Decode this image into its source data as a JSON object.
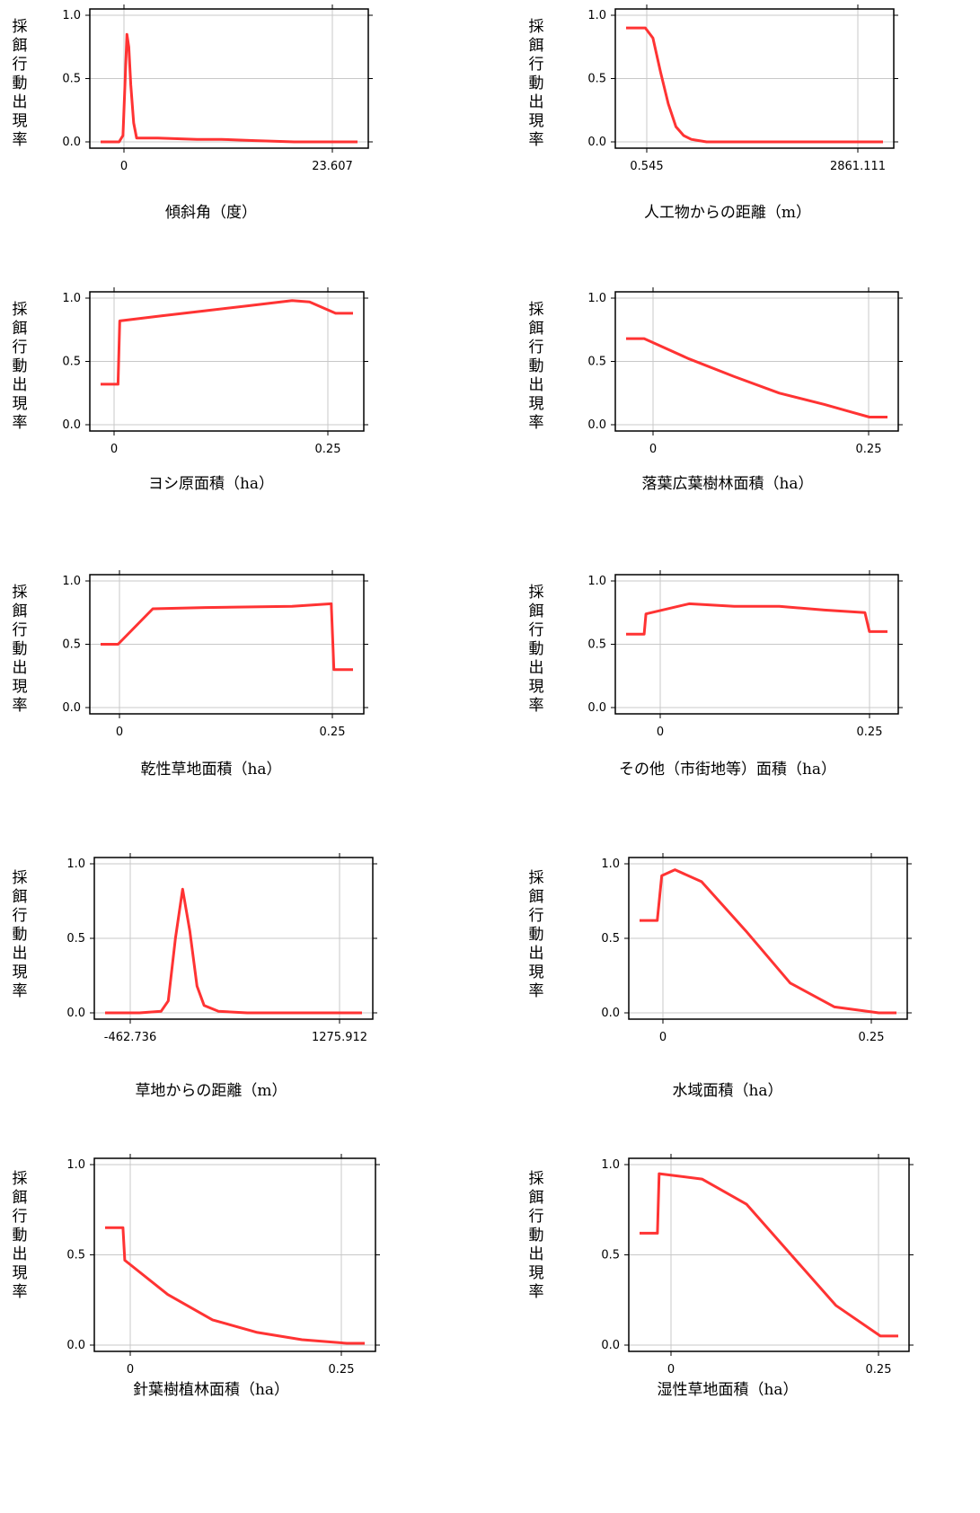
{
  "chart_data": [
    {
      "type": "line",
      "ylabel": "採餌行動出現率",
      "xlabel": "傾斜角（度）",
      "x_ticks": [
        "0",
        "23.607"
      ],
      "y_ticks": [
        "0.0",
        "0.5",
        "1.0"
      ],
      "ylim": [
        0,
        1
      ],
      "grid": true,
      "series": [
        {
          "color": "#ff3333",
          "x": [
            -1.9,
            0.0,
            0.4,
            0.8,
            1.0,
            1.2,
            1.5,
            1.8,
            2.2,
            4.0,
            8.0,
            10.5,
            14,
            18,
            23.0,
            24.5
          ],
          "y": [
            0.0,
            0.0,
            0.05,
            0.85,
            0.75,
            0.45,
            0.15,
            0.03,
            0.03,
            0.03,
            0.02,
            0.02,
            0.01,
            0.0,
            0.0,
            0.0
          ]
        }
      ]
    },
    {
      "type": "line",
      "ylabel": "採餌行動出現率",
      "xlabel": "人工物からの距離（m）",
      "x_ticks": [
        "0.545",
        "2861.111"
      ],
      "y_ticks": [
        "0.0",
        "0.5",
        "1.0"
      ],
      "ylim": [
        0,
        1
      ],
      "grid": true,
      "series": [
        {
          "color": "#ff3333",
          "x": [
            -250,
            0.545,
            100,
            200,
            300,
            400,
            500,
            600,
            700,
            800,
            1000,
            2000,
            2861.111,
            3100
          ],
          "y": [
            0.9,
            0.9,
            0.82,
            0.55,
            0.3,
            0.12,
            0.05,
            0.02,
            0.01,
            0.0,
            0.0,
            0.0,
            0.0,
            0.0
          ]
        }
      ]
    },
    {
      "type": "line",
      "ylabel": "採餌行動出現率",
      "xlabel": "ヨシ原面積（ha）",
      "x_ticks": [
        "0",
        "0.25"
      ],
      "y_ticks": [
        "0.0",
        "0.5",
        "1.0"
      ],
      "ylim": [
        0,
        1
      ],
      "grid": true,
      "series": [
        {
          "color": "#ff3333",
          "x": [
            -0.02,
            0,
            0.002,
            0.05,
            0.1,
            0.15,
            0.2,
            0.22,
            0.25,
            0.27
          ],
          "y": [
            0.32,
            0.32,
            0.82,
            0.86,
            0.9,
            0.94,
            0.98,
            0.97,
            0.88,
            0.88
          ]
        }
      ]
    },
    {
      "type": "line",
      "ylabel": "採餌行動出現率",
      "xlabel": "落葉広葉樹林面積（ha）",
      "x_ticks": [
        "0",
        "0.25"
      ],
      "y_ticks": [
        "0.0",
        "0.5",
        "1.0"
      ],
      "ylim": [
        0,
        1
      ],
      "grid": true,
      "series": [
        {
          "color": "#ff3333",
          "x": [
            -0.02,
            0,
            0.05,
            0.1,
            0.15,
            0.2,
            0.23,
            0.25,
            0.27
          ],
          "y": [
            0.68,
            0.68,
            0.52,
            0.38,
            0.25,
            0.16,
            0.1,
            0.06,
            0.06
          ]
        }
      ]
    },
    {
      "type": "line",
      "ylabel": "採餌行動出現率",
      "xlabel": "乾性草地面積（ha）",
      "x_ticks": [
        "0",
        "0.25"
      ],
      "y_ticks": [
        "0.0",
        "0.5",
        "1.0"
      ],
      "ylim": [
        0,
        1
      ],
      "grid": true,
      "series": [
        {
          "color": "#ff3333",
          "x": [
            -0.02,
            0,
            0.04,
            0.1,
            0.2,
            0.245,
            0.248,
            0.25,
            0.27
          ],
          "y": [
            0.5,
            0.5,
            0.78,
            0.79,
            0.8,
            0.82,
            0.3,
            0.3,
            0.3
          ]
        }
      ]
    },
    {
      "type": "line",
      "ylabel": "採餌行動出現率",
      "xlabel": "その他（市街地等）面積（ha）",
      "x_ticks": [
        "0",
        "0.25"
      ],
      "y_ticks": [
        "0.0",
        "0.5",
        "1.0"
      ],
      "ylim": [
        0,
        1
      ],
      "grid": true,
      "series": [
        {
          "color": "#ff3333",
          "x": [
            -0.02,
            0,
            0.002,
            0.05,
            0.1,
            0.15,
            0.2,
            0.245,
            0.25,
            0.27
          ],
          "y": [
            0.58,
            0.58,
            0.74,
            0.82,
            0.8,
            0.8,
            0.77,
            0.75,
            0.6,
            0.6
          ]
        }
      ]
    },
    {
      "type": "line",
      "ylabel": "採餌行動出現率",
      "xlabel": "草地からの距離（m）",
      "x_ticks": [
        "-462.736",
        "1275.912"
      ],
      "y_ticks": [
        "0.0",
        "0.5",
        "1.0"
      ],
      "ylim": [
        0,
        1
      ],
      "grid": true,
      "series": [
        {
          "color": "#ff3333",
          "x": [
            -490,
            -250,
            -100,
            -50,
            0,
            50,
            100,
            150,
            200,
            300,
            500,
            800,
            1275.912,
            1300
          ],
          "y": [
            0.0,
            0.0,
            0.01,
            0.08,
            0.5,
            0.83,
            0.55,
            0.18,
            0.05,
            0.01,
            0.0,
            0.0,
            0.0,
            0.0
          ]
        }
      ]
    },
    {
      "type": "line",
      "ylabel": "採餌行動出現率",
      "xlabel": "水域面積（ha）",
      "x_ticks": [
        "0",
        "0.25"
      ],
      "y_ticks": [
        "0.0",
        "0.5",
        "1.0"
      ],
      "ylim": [
        0,
        1
      ],
      "grid": true,
      "series": [
        {
          "color": "#ff3333",
          "x": [
            -0.02,
            0,
            0.005,
            0.02,
            0.05,
            0.1,
            0.15,
            0.2,
            0.25,
            0.27
          ],
          "y": [
            0.62,
            0.62,
            0.92,
            0.96,
            0.88,
            0.55,
            0.2,
            0.04,
            0.0,
            0.0
          ]
        }
      ]
    },
    {
      "type": "line",
      "ylabel": "採餌行動出現率",
      "xlabel": "針葉樹植林面積（ha）",
      "x_ticks": [
        "0",
        "0.25"
      ],
      "y_ticks": [
        "0.0",
        "0.5",
        "1.0"
      ],
      "ylim": [
        0,
        1
      ],
      "grid": true,
      "series": [
        {
          "color": "#ff3333",
          "x": [
            -0.02,
            0,
            0.002,
            0.05,
            0.1,
            0.15,
            0.2,
            0.25,
            0.27
          ],
          "y": [
            0.65,
            0.65,
            0.47,
            0.28,
            0.14,
            0.07,
            0.03,
            0.01,
            0.01
          ]
        }
      ]
    },
    {
      "type": "line",
      "ylabel": "採餌行動出現率",
      "xlabel": "湿性草地面積（ha）",
      "x_ticks": [
        "0",
        "0.25"
      ],
      "y_ticks": [
        "0.0",
        "0.5",
        "1.0"
      ],
      "ylim": [
        0,
        1
      ],
      "grid": true,
      "series": [
        {
          "color": "#ff3333",
          "x": [
            -0.02,
            0,
            0.002,
            0.05,
            0.1,
            0.15,
            0.2,
            0.25,
            0.27
          ],
          "y": [
            0.62,
            0.62,
            0.95,
            0.92,
            0.78,
            0.5,
            0.22,
            0.05,
            0.05
          ]
        }
      ]
    }
  ]
}
